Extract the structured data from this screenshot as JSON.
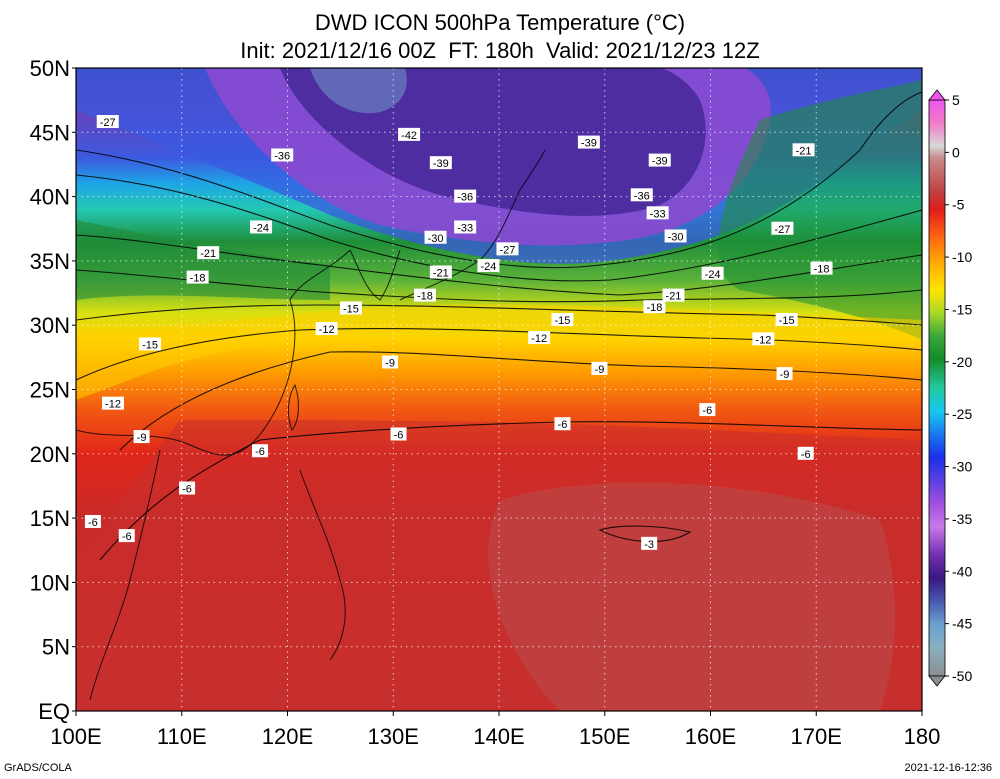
{
  "title": {
    "line1": "DWD ICON 500hPa Temperature (°C)",
    "line2": "Init: 2021/12/16 00Z  FT: 180h  Valid: 2021/12/23 12Z"
  },
  "map": {
    "projection": "lat-lon",
    "lon_range": [
      100,
      180
    ],
    "lat_range": [
      0,
      50
    ],
    "lon_ticks": [
      {
        "value": 100,
        "label": "100E"
      },
      {
        "value": 110,
        "label": "110E"
      },
      {
        "value": 120,
        "label": "120E"
      },
      {
        "value": 130,
        "label": "130E"
      },
      {
        "value": 140,
        "label": "140E"
      },
      {
        "value": 150,
        "label": "150E"
      },
      {
        "value": 160,
        "label": "160E"
      },
      {
        "value": 170,
        "label": "170E"
      },
      {
        "value": 180,
        "label": "180"
      }
    ],
    "lat_ticks": [
      {
        "value": 0,
        "label": "EQ"
      },
      {
        "value": 5,
        "label": "5N"
      },
      {
        "value": 10,
        "label": "10N"
      },
      {
        "value": 15,
        "label": "15N"
      },
      {
        "value": 20,
        "label": "20N"
      },
      {
        "value": 25,
        "label": "25N"
      },
      {
        "value": 30,
        "label": "30N"
      },
      {
        "value": 35,
        "label": "35N"
      },
      {
        "value": 40,
        "label": "40N"
      },
      {
        "value": 45,
        "label": "45N"
      },
      {
        "value": 50,
        "label": "50N"
      }
    ],
    "grid": true
  },
  "colorbar": {
    "labels": [
      "5",
      "0",
      "-5",
      "-10",
      "-15",
      "-20",
      "-25",
      "-30",
      "-35",
      "-40",
      "-45",
      "-50"
    ],
    "values": [
      5,
      0,
      -5,
      -10,
      -15,
      -20,
      -25,
      -30,
      -35,
      -40,
      -45,
      -50
    ]
  },
  "chart_data": {
    "type": "heatmap",
    "variable": "500hPa Temperature",
    "unit": "°C",
    "contour_labels": [
      {
        "lon": 103,
        "lat": 45.8,
        "text": "-27"
      },
      {
        "lon": 119.5,
        "lat": 43.2,
        "text": "-36"
      },
      {
        "lon": 131.5,
        "lat": 44.8,
        "text": "-42"
      },
      {
        "lon": 134.5,
        "lat": 42.6,
        "text": "-39"
      },
      {
        "lon": 148.5,
        "lat": 44.2,
        "text": "-39"
      },
      {
        "lon": 155.2,
        "lat": 42.8,
        "text": "-39"
      },
      {
        "lon": 168.8,
        "lat": 43.6,
        "text": "-21"
      },
      {
        "lon": 136.8,
        "lat": 40.0,
        "text": "-36"
      },
      {
        "lon": 136.8,
        "lat": 37.6,
        "text": "-33"
      },
      {
        "lon": 134.0,
        "lat": 36.8,
        "text": "-30"
      },
      {
        "lon": 140.8,
        "lat": 35.9,
        "text": "-27"
      },
      {
        "lon": 139.0,
        "lat": 34.6,
        "text": "-24"
      },
      {
        "lon": 153.5,
        "lat": 40.1,
        "text": "-36"
      },
      {
        "lon": 155.0,
        "lat": 38.7,
        "text": "-33"
      },
      {
        "lon": 156.7,
        "lat": 36.9,
        "text": "-30"
      },
      {
        "lon": 166.8,
        "lat": 37.5,
        "text": "-27"
      },
      {
        "lon": 117.5,
        "lat": 37.6,
        "text": "-24"
      },
      {
        "lon": 112.5,
        "lat": 35.6,
        "text": "-21"
      },
      {
        "lon": 134.5,
        "lat": 34.1,
        "text": "-21"
      },
      {
        "lon": 160.2,
        "lat": 34.0,
        "text": "-24"
      },
      {
        "lon": 170.5,
        "lat": 34.4,
        "text": "-18"
      },
      {
        "lon": 111.5,
        "lat": 33.7,
        "text": "-18"
      },
      {
        "lon": 133.0,
        "lat": 32.3,
        "text": "-18"
      },
      {
        "lon": 156.5,
        "lat": 32.3,
        "text": "-21"
      },
      {
        "lon": 154.7,
        "lat": 31.4,
        "text": "-18"
      },
      {
        "lon": 126.0,
        "lat": 31.3,
        "text": "-15"
      },
      {
        "lon": 146.0,
        "lat": 30.4,
        "text": "-15"
      },
      {
        "lon": 167.2,
        "lat": 30.4,
        "text": "-15"
      },
      {
        "lon": 123.7,
        "lat": 29.7,
        "text": "-12"
      },
      {
        "lon": 107.0,
        "lat": 28.5,
        "text": "-15"
      },
      {
        "lon": 143.8,
        "lat": 29.0,
        "text": "-12"
      },
      {
        "lon": 165.0,
        "lat": 28.9,
        "text": "-12"
      },
      {
        "lon": 129.7,
        "lat": 27.1,
        "text": "-9"
      },
      {
        "lon": 149.5,
        "lat": 26.6,
        "text": "-9"
      },
      {
        "lon": 167.0,
        "lat": 26.2,
        "text": "-9"
      },
      {
        "lon": 103.5,
        "lat": 23.9,
        "text": "-12"
      },
      {
        "lon": 159.7,
        "lat": 23.4,
        "text": "-6"
      },
      {
        "lon": 146.0,
        "lat": 22.3,
        "text": "-6"
      },
      {
        "lon": 130.5,
        "lat": 21.5,
        "text": "-6"
      },
      {
        "lon": 106.2,
        "lat": 21.3,
        "text": "-9"
      },
      {
        "lon": 117.4,
        "lat": 20.2,
        "text": "-6"
      },
      {
        "lon": 169.0,
        "lat": 20.0,
        "text": "-6"
      },
      {
        "lon": 110.5,
        "lat": 17.3,
        "text": "-6"
      },
      {
        "lon": 101.6,
        "lat": 14.7,
        "text": "-6"
      },
      {
        "lon": 104.8,
        "lat": 13.6,
        "text": "-6"
      },
      {
        "lon": 154.2,
        "lat": 13.0,
        "text": "-3"
      }
    ],
    "pattern": "Temperature increases southward; coldest trough (about -42) near 45N 135E-155E; tropics -6 to -3"
  },
  "footer": {
    "left": "GrADS/COLA",
    "right": "2021-12-16-12:36"
  }
}
